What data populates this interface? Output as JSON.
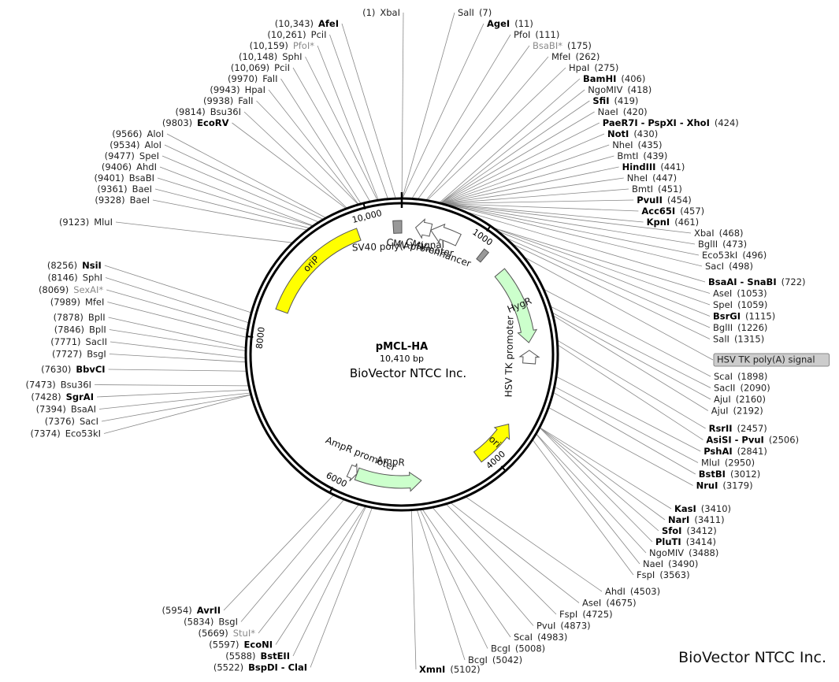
{
  "plasmid": {
    "name": "pMCL-HA",
    "size_label": "10,410 bp",
    "company": "BioVector NTCC Inc.",
    "length_bp": 10410
  },
  "footer_brand": "BioVector NTCC Inc.",
  "colors": {
    "feature_yellow": "#ffff00",
    "feature_green": "#ccffcc",
    "feature_gray": "#999999",
    "highlight_box": "#cccccc",
    "lines": "#888888"
  },
  "ruler_ticks": [
    {
      "pos": 1000,
      "label": "1000"
    },
    {
      "pos": 4000,
      "label": "4000"
    },
    {
      "pos": 6000,
      "label": "6000"
    },
    {
      "pos": 8000,
      "label": "8000"
    },
    {
      "pos": 10000,
      "label": "10,000"
    }
  ],
  "features": [
    {
      "name": "oriP",
      "start": 8380,
      "end": 9840,
      "type": "box",
      "color": "yellow",
      "label": "oriP",
      "label_mode": "inside"
    },
    {
      "name": "SV40 poly(A) signal",
      "start": 10300,
      "end": 10410,
      "type": "box",
      "color": "gray",
      "label": "SV40 poly(A) signal",
      "label_mode": "inner"
    },
    {
      "name": "CMV enhancer",
      "start": 380,
      "end": 760,
      "type": "arrow-ccw",
      "color": "white",
      "label": "CMV enhancer",
      "label_mode": "inner"
    },
    {
      "name": "CMV promoter",
      "start": 180,
      "end": 380,
      "type": "arrow-ccw",
      "color": "white",
      "label": "CMV promoter",
      "label_mode": "inner"
    },
    {
      "name": "Small box",
      "start": 1100,
      "end": 1170,
      "type": "box",
      "color": "gray",
      "label": "",
      "label_mode": "none"
    },
    {
      "name": "HygR",
      "start": 1450,
      "end": 2450,
      "type": "arrow-cw",
      "color": "green",
      "label": "HygR",
      "label_mode": "inside"
    },
    {
      "name": "HSV TK promoter",
      "start": 2550,
      "end": 2720,
      "type": "arrow-ccw",
      "color": "white",
      "label": "HSV TK promoter",
      "label_mode": "inner"
    },
    {
      "name": "ori",
      "start": 3560,
      "end": 4150,
      "type": "arrow-ccw",
      "color": "yellow",
      "label": "ori",
      "label_mode": "inside"
    },
    {
      "name": "AmpR",
      "start": 4950,
      "end": 5800,
      "type": "arrow-ccw",
      "color": "green",
      "label": "AmpR",
      "label_mode": "inner"
    },
    {
      "name": "AmpR promoter",
      "start": 5800,
      "end": 5905,
      "type": "arrow-ccw",
      "color": "white",
      "label": "AmpR promoter",
      "label_mode": "inner"
    }
  ],
  "right_sites": [
    {
      "name": "SalI",
      "pos": "(7)",
      "style": "normal",
      "bp": 7
    },
    {
      "name": "AgeI",
      "pos": "(11)",
      "style": "bold",
      "bp": 11
    },
    {
      "name": "PfoI",
      "pos": "(111)",
      "style": "normal",
      "bp": 111
    },
    {
      "name": "BsaBI*",
      "pos": "(175)",
      "style": "gray",
      "bp": 175
    },
    {
      "name": "MfeI",
      "pos": "(262)",
      "style": "normal",
      "bp": 262
    },
    {
      "name": "HpaI",
      "pos": "(275)",
      "style": "normal",
      "bp": 275
    },
    {
      "name": "BamHI",
      "pos": "(406)",
      "style": "bold",
      "bp": 406
    },
    {
      "name": "NgoMIV",
      "pos": "(418)",
      "style": "normal",
      "bp": 418
    },
    {
      "name": "SfiI",
      "pos": "(419)",
      "style": "bold",
      "bp": 419
    },
    {
      "name": "NaeI",
      "pos": "(420)",
      "style": "normal",
      "bp": 420
    },
    {
      "name": "PaeR7I - PspXI - XhoI",
      "pos": "(424)",
      "style": "bold",
      "bp": 424
    },
    {
      "name": "NotI",
      "pos": "(430)",
      "style": "bold",
      "bp": 430
    },
    {
      "name": "NheI",
      "pos": "(435)",
      "style": "normal",
      "bp": 435
    },
    {
      "name": "BmtI",
      "pos": "(439)",
      "style": "normal",
      "bp": 439
    },
    {
      "name": "HindIII",
      "pos": "(441)",
      "style": "bold",
      "bp": 441
    },
    {
      "name": "NheI",
      "pos": "(447)",
      "style": "normal",
      "bp": 447
    },
    {
      "name": "BmtI",
      "pos": "(451)",
      "style": "normal",
      "bp": 451
    },
    {
      "name": "PvuII",
      "pos": "(454)",
      "style": "bold",
      "bp": 454
    },
    {
      "name": "Acc65I",
      "pos": "(457)",
      "style": "bold",
      "bp": 457
    },
    {
      "name": "KpnI",
      "pos": "(461)",
      "style": "bold",
      "bp": 461
    },
    {
      "name": "XbaI",
      "pos": "(468)",
      "style": "normal",
      "bp": 468
    },
    {
      "name": "BglII",
      "pos": "(473)",
      "style": "normal",
      "bp": 473
    },
    {
      "name": "Eco53kI",
      "pos": "(496)",
      "style": "normal",
      "bp": 496
    },
    {
      "name": "SacI",
      "pos": "(498)",
      "style": "normal",
      "bp": 498
    },
    {
      "name": "BsaAI - SnaBI",
      "pos": "(722)",
      "style": "mixed",
      "bp": 722
    },
    {
      "name": "AseI",
      "pos": "(1053)",
      "style": "normal",
      "bp": 1053
    },
    {
      "name": "SpeI",
      "pos": "(1059)",
      "style": "normal",
      "bp": 1059
    },
    {
      "name": "BsrGI",
      "pos": "(1115)",
      "style": "bold",
      "bp": 1115
    },
    {
      "name": "BglII",
      "pos": "(1226)",
      "style": "normal",
      "bp": 1226
    },
    {
      "name": "SalI",
      "pos": "(1315)",
      "style": "normal",
      "bp": 1315
    },
    {
      "name": "HSV TK poly(A) signal",
      "pos": "",
      "style": "highlight",
      "bp": 1500
    },
    {
      "name": "ScaI",
      "pos": "(1898)",
      "style": "normal",
      "bp": 1898
    },
    {
      "name": "SacII",
      "pos": "(2090)",
      "style": "normal",
      "bp": 2090
    },
    {
      "name": "AjuI",
      "pos": "(2160)",
      "style": "normal",
      "bp": 2160
    },
    {
      "name": "AjuI",
      "pos": "(2192)",
      "style": "normal",
      "bp": 2192
    },
    {
      "name": "RsrII",
      "pos": "(2457)",
      "style": "bold",
      "bp": 2457
    },
    {
      "name": "AsiSI - PvuI",
      "pos": "(2506)",
      "style": "mixed2",
      "bp": 2506
    },
    {
      "name": "PshAI",
      "pos": "(2841)",
      "style": "bold",
      "bp": 2841
    },
    {
      "name": "MluI",
      "pos": "(2950)",
      "style": "normal",
      "bp": 2950
    },
    {
      "name": "BstBI",
      "pos": "(3012)",
      "style": "bold",
      "bp": 3012
    },
    {
      "name": "NruI",
      "pos": "(3179)",
      "style": "bold",
      "bp": 3179
    },
    {
      "name": "KasI",
      "pos": "(3410)",
      "style": "bold",
      "bp": 3410
    },
    {
      "name": "NarI",
      "pos": "(3411)",
      "style": "bold",
      "bp": 3411
    },
    {
      "name": "SfoI",
      "pos": "(3412)",
      "style": "bold",
      "bp": 3412
    },
    {
      "name": "PluTI",
      "pos": "(3414)",
      "style": "bold",
      "bp": 3414
    },
    {
      "name": "NgoMIV",
      "pos": "(3488)",
      "style": "normal",
      "bp": 3488
    },
    {
      "name": "NaeI",
      "pos": "(3490)",
      "style": "normal",
      "bp": 3490
    },
    {
      "name": "FspI",
      "pos": "(3563)",
      "style": "normal",
      "bp": 3563
    },
    {
      "name": "AhdI",
      "pos": "(4503)",
      "style": "normal",
      "bp": 4503
    },
    {
      "name": "AseI",
      "pos": "(4675)",
      "style": "normal",
      "bp": 4675
    },
    {
      "name": "FspI",
      "pos": "(4725)",
      "style": "normal",
      "bp": 4725
    },
    {
      "name": "PvuI",
      "pos": "(4873)",
      "style": "normal",
      "bp": 4873
    },
    {
      "name": "ScaI",
      "pos": "(4983)",
      "style": "normal",
      "bp": 4983
    },
    {
      "name": "BcgI",
      "pos": "(5008)",
      "style": "normal",
      "bp": 5008
    },
    {
      "name": "BcgI",
      "pos": "(5042)",
      "style": "normal",
      "bp": 5042
    },
    {
      "name": "XmnI",
      "pos": "(5102)",
      "style": "bold",
      "bp": 5102
    }
  ],
  "left_sites": [
    {
      "name": "XbaI",
      "pos": "(1)",
      "style": "normal",
      "bp": 1
    },
    {
      "name": "AfeI",
      "pos": "(10,343)",
      "style": "bold",
      "bp": 10343
    },
    {
      "name": "PciI",
      "pos": "(10,261)",
      "style": "normal",
      "bp": 10261
    },
    {
      "name": "PfoI*",
      "pos": "(10,159)",
      "style": "gray",
      "bp": 10159
    },
    {
      "name": "SphI",
      "pos": "(10,148)",
      "style": "normal",
      "bp": 10148
    },
    {
      "name": "PciI",
      "pos": "(10,069)",
      "style": "normal",
      "bp": 10069
    },
    {
      "name": "FalI",
      "pos": "(9970)",
      "style": "normal",
      "bp": 9970
    },
    {
      "name": "HpaI",
      "pos": "(9943)",
      "style": "normal",
      "bp": 9943
    },
    {
      "name": "FalI",
      "pos": "(9938)",
      "style": "normal",
      "bp": 9938
    },
    {
      "name": "Bsu36I",
      "pos": "(9814)",
      "style": "normal",
      "bp": 9814
    },
    {
      "name": "EcoRV",
      "pos": "(9803)",
      "style": "bold",
      "bp": 9803
    },
    {
      "name": "AloI",
      "pos": "(9566)",
      "style": "normal",
      "bp": 9566
    },
    {
      "name": "AloI",
      "pos": "(9534)",
      "style": "normal",
      "bp": 9534
    },
    {
      "name": "SpeI",
      "pos": "(9477)",
      "style": "normal",
      "bp": 9477
    },
    {
      "name": "AhdI",
      "pos": "(9406)",
      "style": "normal",
      "bp": 9406
    },
    {
      "name": "BsaBI",
      "pos": "(9401)",
      "style": "normal",
      "bp": 9401
    },
    {
      "name": "BaeI",
      "pos": "(9361)",
      "style": "normal",
      "bp": 9361
    },
    {
      "name": "BaeI",
      "pos": "(9328)",
      "style": "normal",
      "bp": 9328
    },
    {
      "name": "MluI",
      "pos": "(9123)",
      "style": "normal",
      "bp": 9123
    },
    {
      "name": "NsiI",
      "pos": "(8256)",
      "style": "bold",
      "bp": 8256
    },
    {
      "name": "SphI",
      "pos": "(8146)",
      "style": "normal",
      "bp": 8146
    },
    {
      "name": "SexAI*",
      "pos": "(8069)",
      "style": "gray",
      "bp": 8069
    },
    {
      "name": "MfeI",
      "pos": "(7989)",
      "style": "normal",
      "bp": 7989
    },
    {
      "name": "BplI",
      "pos": "(7878)",
      "style": "normal",
      "bp": 7878
    },
    {
      "name": "BplI",
      "pos": "(7846)",
      "style": "normal",
      "bp": 7846
    },
    {
      "name": "SacII",
      "pos": "(7771)",
      "style": "normal",
      "bp": 7771
    },
    {
      "name": "BsgI",
      "pos": "(7727)",
      "style": "normal",
      "bp": 7727
    },
    {
      "name": "BbvCI",
      "pos": "(7630)",
      "style": "bold",
      "bp": 7630
    },
    {
      "name": "Bsu36I",
      "pos": "(7473)",
      "style": "normal",
      "bp": 7473
    },
    {
      "name": "SgrAI",
      "pos": "(7428)",
      "style": "bold",
      "bp": 7428
    },
    {
      "name": "BsaAI",
      "pos": "(7394)",
      "style": "normal",
      "bp": 7394
    },
    {
      "name": "SacI",
      "pos": "(7376)",
      "style": "normal",
      "bp": 7376
    },
    {
      "name": "Eco53kI",
      "pos": "(7374)",
      "style": "normal",
      "bp": 7374
    },
    {
      "name": "AvrII",
      "pos": "(5954)",
      "style": "bold",
      "bp": 5954
    },
    {
      "name": "BsgI",
      "pos": "(5834)",
      "style": "normal",
      "bp": 5834
    },
    {
      "name": "StuI*",
      "pos": "(5669)",
      "style": "gray",
      "bp": 5669
    },
    {
      "name": "EcoNI",
      "pos": "(5597)",
      "style": "bold",
      "bp": 5597
    },
    {
      "name": "BstEII",
      "pos": "(5588)",
      "style": "bold",
      "bp": 5588
    },
    {
      "name": "BspDI - ClaI",
      "pos": "(5522)",
      "style": "bold",
      "bp": 5522
    }
  ]
}
